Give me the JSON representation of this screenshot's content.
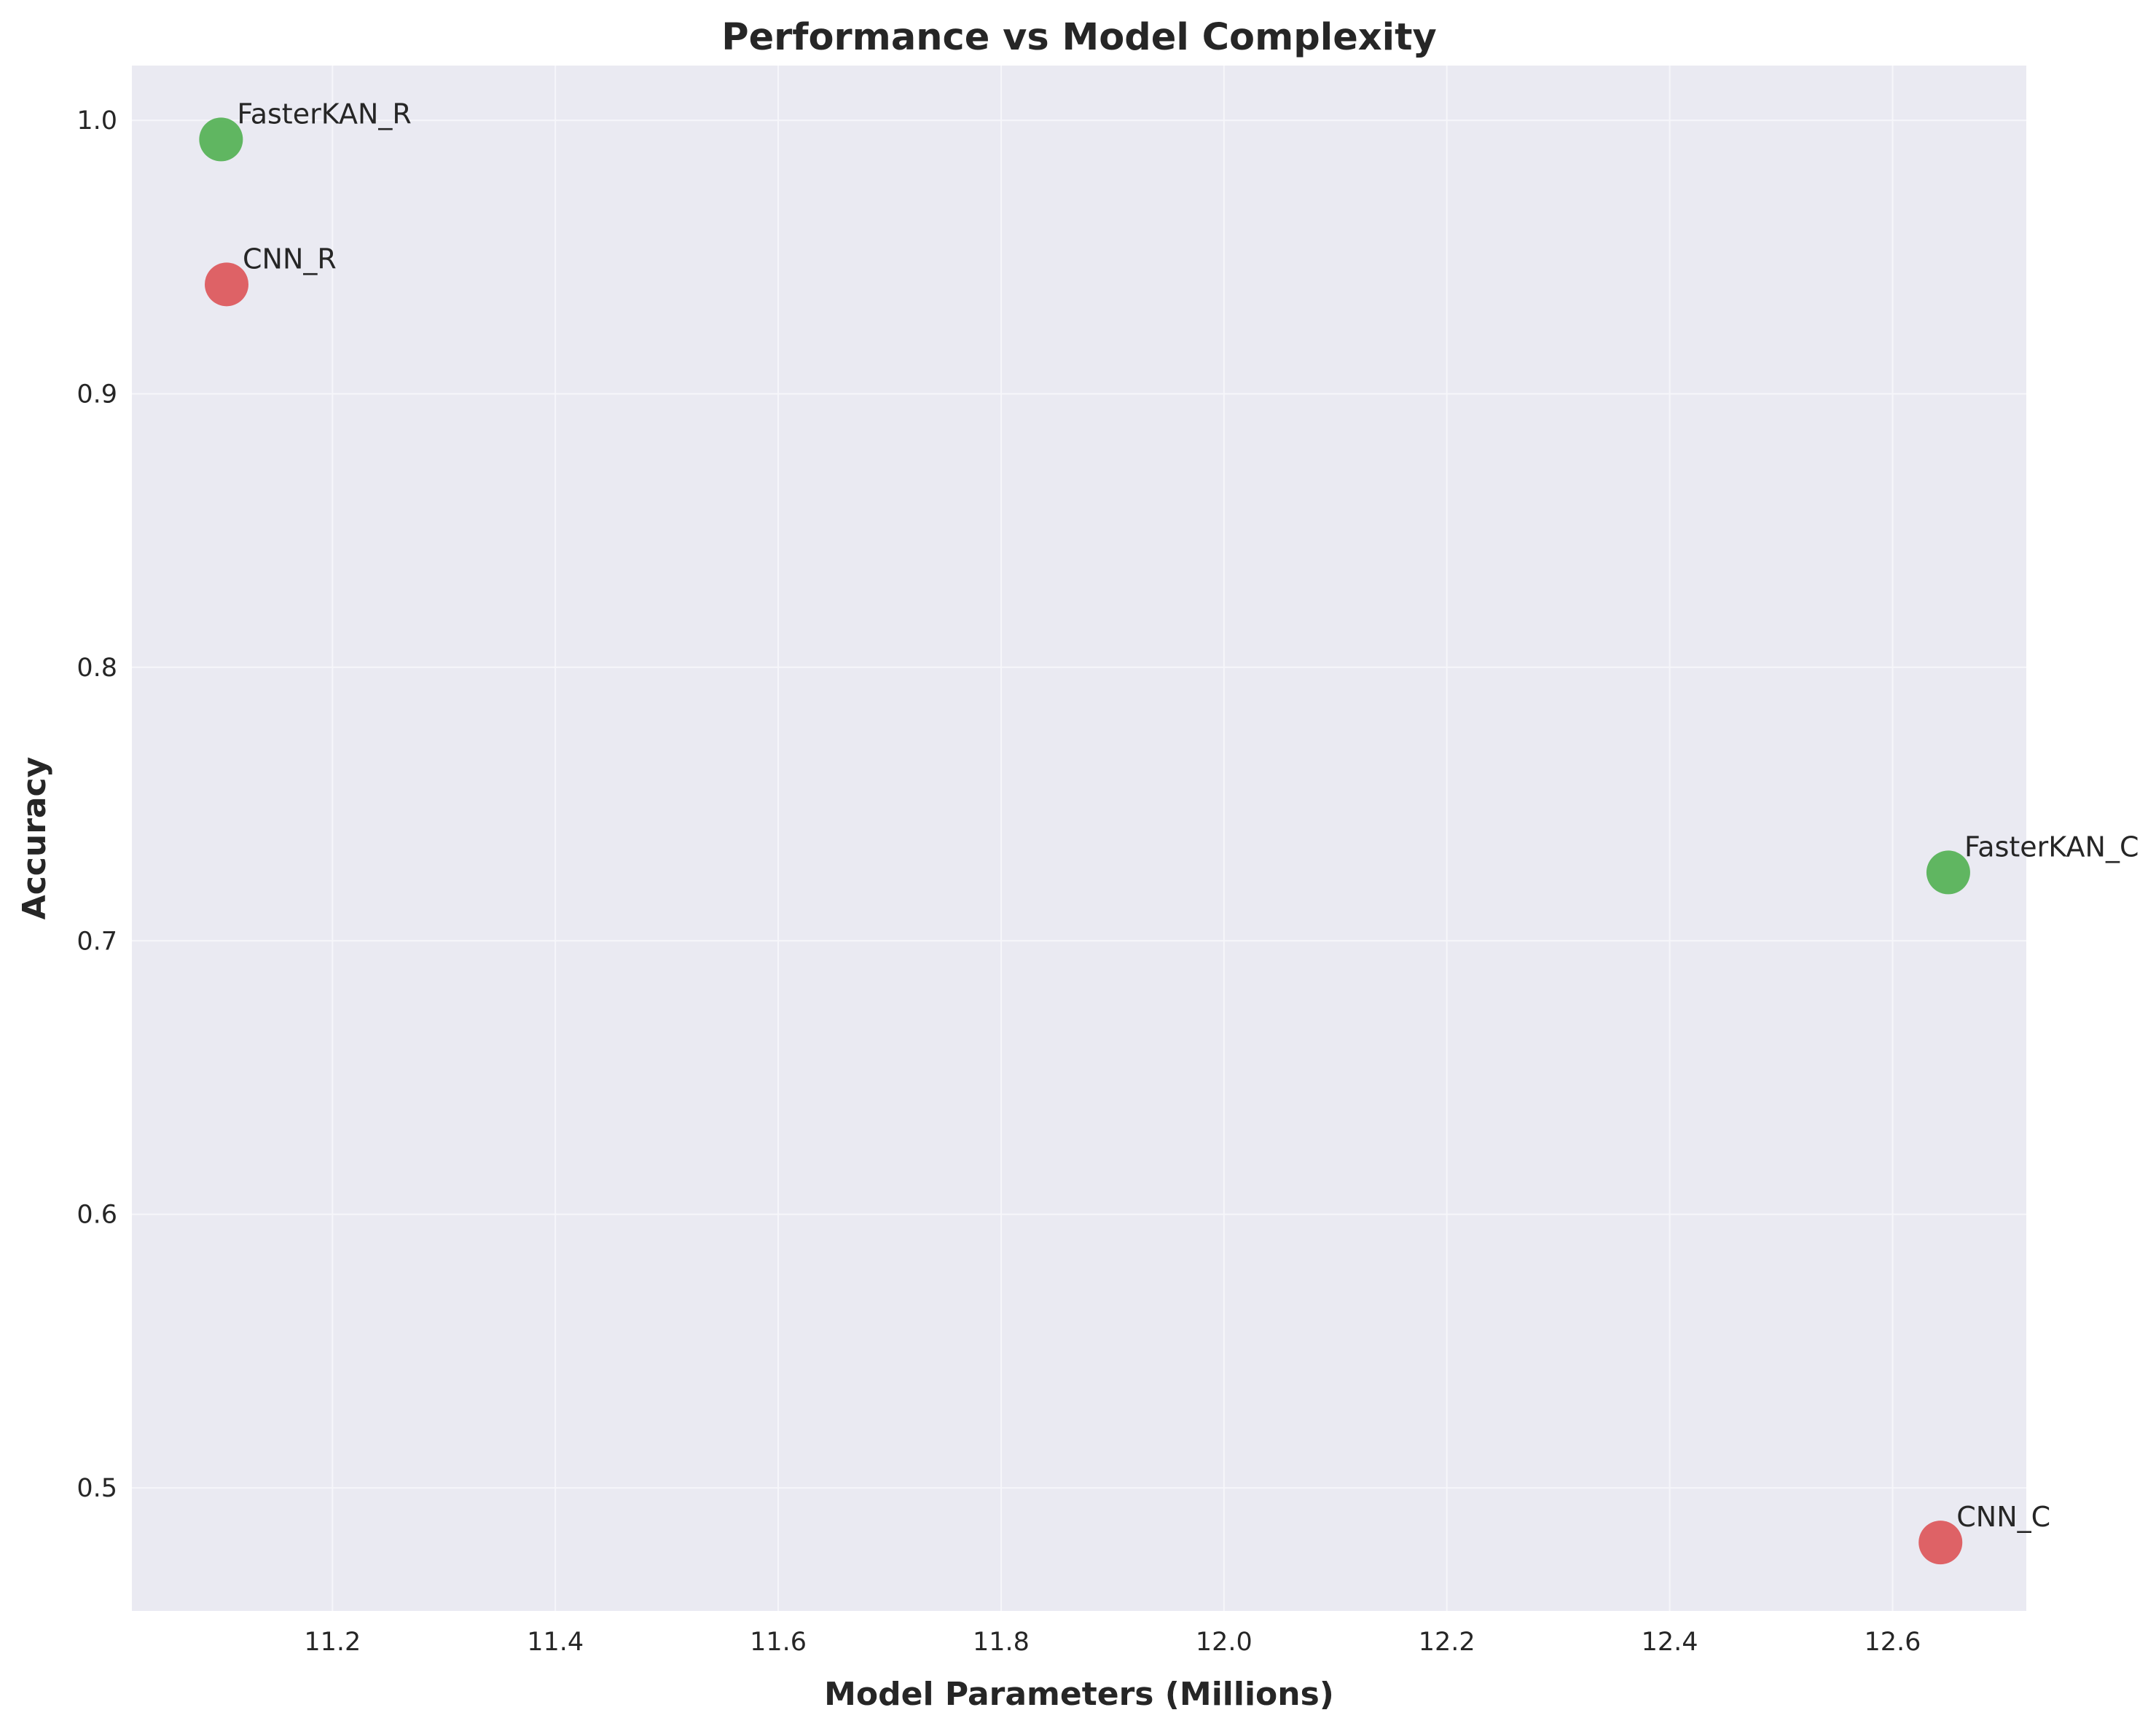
{
  "chart_data": {
    "type": "scatter",
    "title": "Performance vs Model Complexity",
    "xlabel": "Model Parameters (Millions)",
    "ylabel": "Accuracy",
    "xlim": [
      11.02,
      12.72
    ],
    "ylim": [
      0.455,
      1.02
    ],
    "xticks": [
      11.2,
      11.4,
      11.6,
      11.8,
      12.0,
      12.2,
      12.4,
      12.6
    ],
    "xtick_labels": [
      "11.2",
      "11.4",
      "11.6",
      "11.8",
      "12.0",
      "12.2",
      "12.4",
      "12.6"
    ],
    "yticks": [
      0.5,
      0.6,
      0.7,
      0.8,
      0.9,
      1.0
    ],
    "ytick_labels": [
      "0.5",
      "0.6",
      "0.7",
      "0.8",
      "0.9",
      "1.0"
    ],
    "grid": true,
    "background_color": "#eaeaf2",
    "points": [
      {
        "label": "FasterKAN_R",
        "x": 11.1,
        "y": 0.993,
        "color": "#4cae4c"
      },
      {
        "label": "CNN_R",
        "x": 11.105,
        "y": 0.94,
        "color": "#dc4e52"
      },
      {
        "label": "FasterKAN_C",
        "x": 12.65,
        "y": 0.725,
        "color": "#4cae4c"
      },
      {
        "label": "CNN_C",
        "x": 12.643,
        "y": 0.48,
        "color": "#dc4e52"
      }
    ]
  }
}
